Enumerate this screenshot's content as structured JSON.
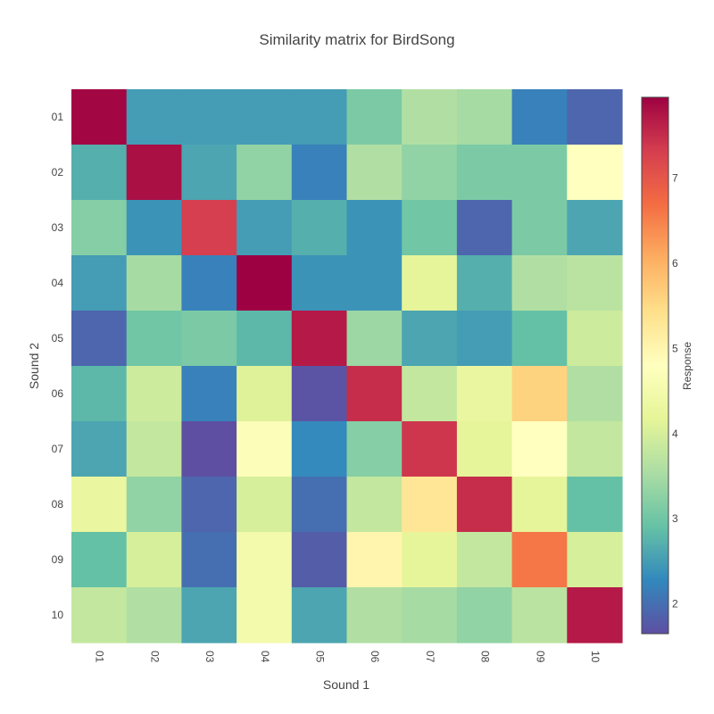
{
  "chart_data": {
    "type": "heatmap",
    "title": "Similarity matrix for BirdSong",
    "xlabel": "Sound 1",
    "ylabel": "Sound 2",
    "x_categories": [
      "01",
      "02",
      "03",
      "04",
      "05",
      "06",
      "07",
      "08",
      "09",
      "10"
    ],
    "y_categories": [
      "01",
      "02",
      "03",
      "04",
      "05",
      "06",
      "07",
      "08",
      "09",
      "10"
    ],
    "values": [
      [
        7.9,
        2.5,
        2.5,
        2.5,
        2.5,
        3.1,
        3.6,
        3.5,
        2.2,
        1.9
      ],
      [
        2.7,
        7.8,
        2.6,
        3.3,
        2.2,
        3.6,
        3.3,
        3.1,
        3.1,
        4.8
      ],
      [
        3.2,
        2.4,
        7.3,
        2.5,
        2.7,
        2.4,
        3.0,
        1.9,
        3.1,
        2.6
      ],
      [
        2.5,
        3.5,
        2.2,
        7.95,
        2.4,
        2.4,
        4.2,
        2.7,
        3.6,
        3.7
      ],
      [
        1.9,
        3.0,
        3.1,
        2.8,
        7.7,
        3.4,
        2.6,
        2.5,
        2.9,
        3.9
      ],
      [
        2.8,
        3.9,
        2.2,
        4.1,
        1.7,
        7.5,
        3.8,
        4.3,
        5.6,
        3.6
      ],
      [
        2.6,
        3.8,
        1.6,
        4.7,
        2.3,
        3.2,
        7.4,
        4.2,
        4.8,
        3.8
      ],
      [
        4.3,
        3.3,
        1.9,
        4.0,
        2.0,
        3.8,
        5.3,
        7.5,
        4.2,
        2.9
      ],
      [
        2.9,
        4.0,
        2.0,
        4.5,
        1.8,
        5.0,
        4.2,
        3.8,
        6.6,
        4.0
      ],
      [
        3.8,
        3.6,
        2.6,
        4.5,
        2.6,
        3.6,
        3.5,
        3.3,
        3.7,
        7.7
      ]
    ],
    "zmin": 1.65,
    "zmax": 7.95,
    "colorscale": [
      "#5e4fa2",
      "#3288bd",
      "#66c2a5",
      "#abdda4",
      "#e6f598",
      "#ffffbf",
      "#fee08b",
      "#fdae61",
      "#f46d43",
      "#d53e4f",
      "#9e0142"
    ],
    "colorbar": {
      "title": "Response",
      "ticks": [
        2,
        3,
        4,
        5,
        6,
        7
      ],
      "tick_labels": [
        "2",
        "3",
        "4",
        "5",
        "6",
        "7"
      ]
    },
    "grid": false,
    "legend": "colorbar-right"
  }
}
